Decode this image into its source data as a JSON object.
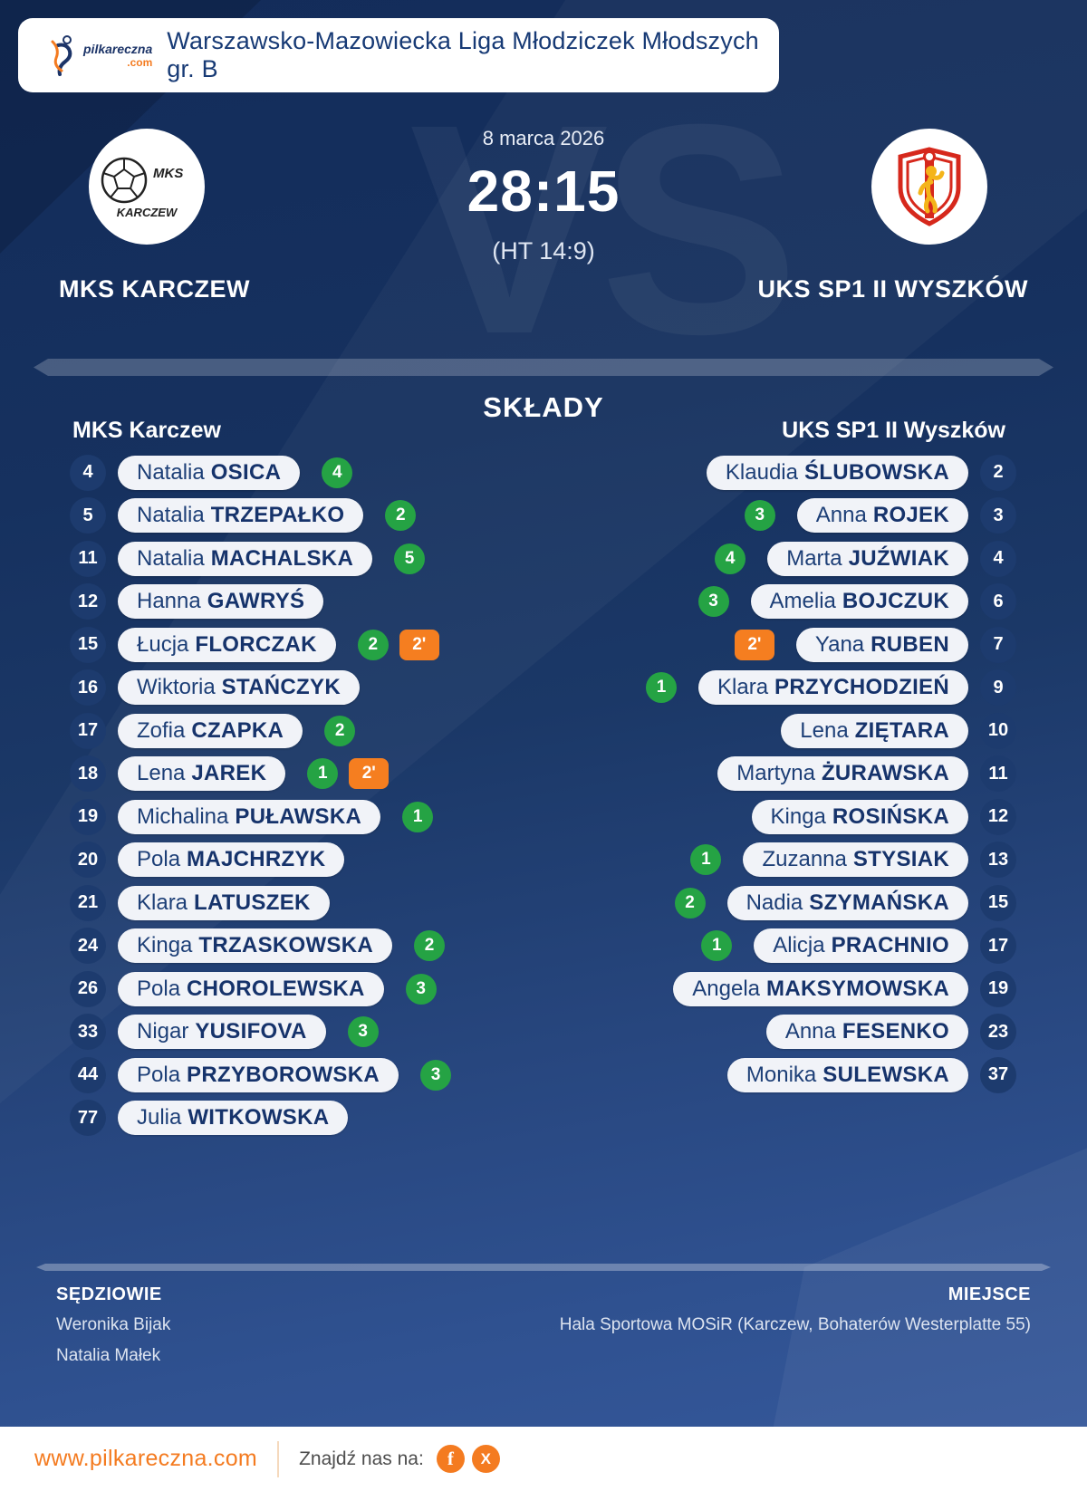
{
  "header": {
    "brand": "pilkareczna",
    "brand_tld": ".com",
    "title": "Warszawsko-Mazowiecka Liga Młodziczek Młodszych gr. B"
  },
  "match": {
    "date": "8 marca 2026",
    "score": "28:15",
    "halftime": "(HT 14:9)",
    "vs_watermark": "VS",
    "home_team": "MKS KARCZEW",
    "away_team": "UKS SP1 II WYSZKÓW",
    "home_crest_line1": "MKS",
    "home_crest_line2": "KARCZEW"
  },
  "lineups": {
    "title": "SKŁADY",
    "home_header": "MKS Karczew",
    "away_header": "UKS SP1 II Wyszków",
    "home": [
      {
        "number": "4",
        "first": "Natalia",
        "last": "OSICA",
        "goals": "4",
        "pen": null
      },
      {
        "number": "5",
        "first": "Natalia",
        "last": "TRZEPAŁKO",
        "goals": "2",
        "pen": null
      },
      {
        "number": "11",
        "first": "Natalia",
        "last": "MACHALSKA",
        "goals": "5",
        "pen": null
      },
      {
        "number": "12",
        "first": "Hanna",
        "last": "GAWRYŚ",
        "goals": null,
        "pen": null
      },
      {
        "number": "15",
        "first": "Łucja",
        "last": "FLORCZAK",
        "goals": "2",
        "pen": "2'"
      },
      {
        "number": "16",
        "first": "Wiktoria",
        "last": "STAŃCZYK",
        "goals": null,
        "pen": null
      },
      {
        "number": "17",
        "first": "Zofia",
        "last": "CZAPKA",
        "goals": "2",
        "pen": null
      },
      {
        "number": "18",
        "first": "Lena",
        "last": "JAREK",
        "goals": "1",
        "pen": "2'"
      },
      {
        "number": "19",
        "first": "Michalina",
        "last": "PUŁAWSKA",
        "goals": "1",
        "pen": null
      },
      {
        "number": "20",
        "first": "Pola",
        "last": "MAJCHRZYK",
        "goals": null,
        "pen": null
      },
      {
        "number": "21",
        "first": "Klara",
        "last": "LATUSZEK",
        "goals": null,
        "pen": null
      },
      {
        "number": "24",
        "first": "Kinga",
        "last": "TRZASKOWSKA",
        "goals": "2",
        "pen": null
      },
      {
        "number": "26",
        "first": "Pola",
        "last": "CHOROLEWSKA",
        "goals": "3",
        "pen": null
      },
      {
        "number": "33",
        "first": "Nigar",
        "last": "YUSIFOVA",
        "goals": "3",
        "pen": null
      },
      {
        "number": "44",
        "first": "Pola",
        "last": "PRZYBOROWSKA",
        "goals": "3",
        "pen": null
      },
      {
        "number": "77",
        "first": "Julia",
        "last": "WITKOWSKA",
        "goals": null,
        "pen": null
      }
    ],
    "away": [
      {
        "number": "2",
        "first": "Klaudia",
        "last": "ŚLUBOWSKA",
        "goals": null,
        "pen": null
      },
      {
        "number": "3",
        "first": "Anna",
        "last": "ROJEK",
        "goals": "3",
        "pen": null
      },
      {
        "number": "4",
        "first": "Marta",
        "last": "JUŹWIAK",
        "goals": "4",
        "pen": null
      },
      {
        "number": "6",
        "first": "Amelia",
        "last": "BOJCZUK",
        "goals": "3",
        "pen": null
      },
      {
        "number": "7",
        "first": "Yana",
        "last": "RUBEN",
        "goals": null,
        "pen": "2'"
      },
      {
        "number": "9",
        "first": "Klara",
        "last": "PRZYCHODZIEŃ",
        "goals": "1",
        "pen": null
      },
      {
        "number": "10",
        "first": "Lena",
        "last": "ZIĘTARA",
        "goals": null,
        "pen": null
      },
      {
        "number": "11",
        "first": "Martyna",
        "last": "ŻURAWSKA",
        "goals": null,
        "pen": null
      },
      {
        "number": "12",
        "first": "Kinga",
        "last": "ROSIŃSKA",
        "goals": null,
        "pen": null
      },
      {
        "number": "13",
        "first": "Zuzanna",
        "last": "STYSIAK",
        "goals": "1",
        "pen": null
      },
      {
        "number": "15",
        "first": "Nadia",
        "last": "SZYMAŃSKA",
        "goals": "2",
        "pen": null
      },
      {
        "number": "17",
        "first": "Alicja",
        "last": "PRACHNIO",
        "goals": "1",
        "pen": null
      },
      {
        "number": "19",
        "first": "Angela",
        "last": "MAKSYMOWSKA",
        "goals": null,
        "pen": null
      },
      {
        "number": "23",
        "first": "Anna",
        "last": "FESENKO",
        "goals": null,
        "pen": null
      },
      {
        "number": "37",
        "first": "Monika",
        "last": "SULEWSKA",
        "goals": null,
        "pen": null
      }
    ]
  },
  "officials": {
    "referees_label": "SĘDZIOWIE",
    "referees": [
      "Weronika Bijak",
      "Natalia Małek"
    ],
    "venue_label": "MIEJSCE",
    "venue": "Hala Sportowa MOSiR (Karczew, Bohaterów Westerplatte 55)"
  },
  "footer": {
    "website": "www.pilkareczna.com",
    "find_us": "Znajdź nas na:",
    "social": [
      "f",
      "X"
    ]
  },
  "colors": {
    "background_top": "#16315f",
    "background_bottom": "#36599c",
    "pill": "#f1f3f8",
    "navy_text": "#16336b",
    "number_circle": "#1d3b6e",
    "goal_green": "#25a344",
    "penalty_orange": "#f57e20",
    "brand_orange": "#f47b20"
  }
}
